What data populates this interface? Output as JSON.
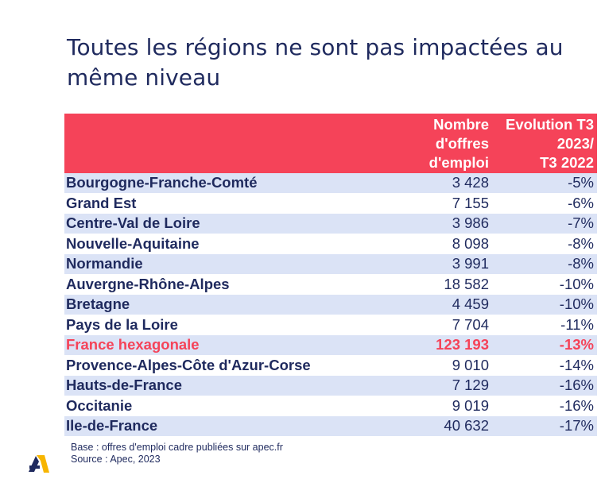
{
  "title": "Toutes les régions ne sont pas impactées au même niveau",
  "headers": {
    "offres": [
      "Nombre",
      "d'offres",
      "d'emploi"
    ],
    "evolution": [
      "Evolution T3",
      "2023/",
      "T3 2022"
    ]
  },
  "rows": [
    {
      "region": "Bourgogne-Franche-Comté",
      "offres": "3 428",
      "evolution": "-5%"
    },
    {
      "region": "Grand Est",
      "offres": "7 155",
      "evolution": "-6%"
    },
    {
      "region": "Centre-Val de Loire",
      "offres": "3 986",
      "evolution": "-7%"
    },
    {
      "region": "Nouvelle-Aquitaine",
      "offres": "8 098",
      "evolution": "-8%"
    },
    {
      "region": "Normandie",
      "offres": "3 991",
      "evolution": "-8%"
    },
    {
      "region": "Auvergne-Rhône-Alpes",
      "offres": "18 582",
      "evolution": "-10%"
    },
    {
      "region": "Bretagne",
      "offres": "4 459",
      "evolution": "-10%"
    },
    {
      "region": "Pays de la Loire",
      "offres": "7 704",
      "evolution": "-11%"
    },
    {
      "region": "France hexagonale",
      "offres": "123 193",
      "evolution": "-13%"
    },
    {
      "region": "Provence-Alpes-Côte d'Azur-Corse",
      "offres": "9 010",
      "evolution": "-14%"
    },
    {
      "region": "Hauts-de-France",
      "offres": "7 129",
      "evolution": "-16%"
    },
    {
      "region": "Occitanie",
      "offres": "9 019",
      "evolution": "-16%"
    },
    {
      "region": "Ile-de-France",
      "offres": "40 632",
      "evolution": "-17%"
    }
  ],
  "notes": {
    "base": "Base : offres d'emploi cadre publiées sur apec.fr",
    "source": "Source : Apec, 2023"
  },
  "colors": {
    "header_bg": "#f54359",
    "row_alt_bg": "#dbe3f6",
    "text_navy": "#1f2a5e",
    "highlight": "#f54359",
    "logo_yellow": "#f7b500"
  },
  "logo_icon": "apec-logo-icon"
}
